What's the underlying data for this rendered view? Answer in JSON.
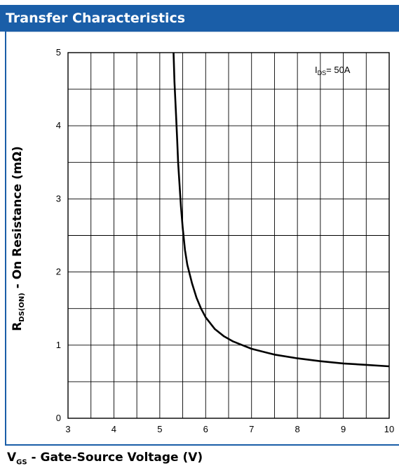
{
  "header": {
    "title": "Transfer Characteristics"
  },
  "chart_data": {
    "type": "line",
    "title": "Transfer Characteristics",
    "xlabel_main": "V",
    "xlabel_sub": "GS",
    "xlabel_rest": " - Gate-Source Voltage (V)",
    "ylabel_main": "R",
    "ylabel_sub": "DS(ON)",
    "ylabel_rest": " - On Resistance (mΩ)",
    "xlim": [
      3,
      10
    ],
    "ylim": [
      0,
      5
    ],
    "x_ticks": [
      "3",
      "4",
      "5",
      "6",
      "7",
      "8",
      "9",
      "10"
    ],
    "y_ticks": [
      "0",
      "1",
      "2",
      "3",
      "4",
      "5"
    ],
    "grid": true,
    "annotation": {
      "main": "I",
      "sub": "DS",
      "rest": "= 50A"
    },
    "series": [
      {
        "x": [
          5.3,
          5.32,
          5.35,
          5.38,
          5.4,
          5.43,
          5.46,
          5.5,
          5.55,
          5.6,
          5.7,
          5.8,
          5.9,
          6.0,
          6.2,
          6.4,
          6.6,
          6.8,
          7.0,
          7.5,
          8.0,
          8.5,
          9.0,
          9.5,
          10.0
        ],
        "y": [
          5.0,
          4.6,
          4.2,
          3.8,
          3.5,
          3.2,
          2.9,
          2.6,
          2.3,
          2.1,
          1.85,
          1.65,
          1.5,
          1.38,
          1.22,
          1.12,
          1.05,
          1.0,
          0.95,
          0.87,
          0.82,
          0.78,
          0.75,
          0.73,
          0.71
        ]
      }
    ]
  }
}
